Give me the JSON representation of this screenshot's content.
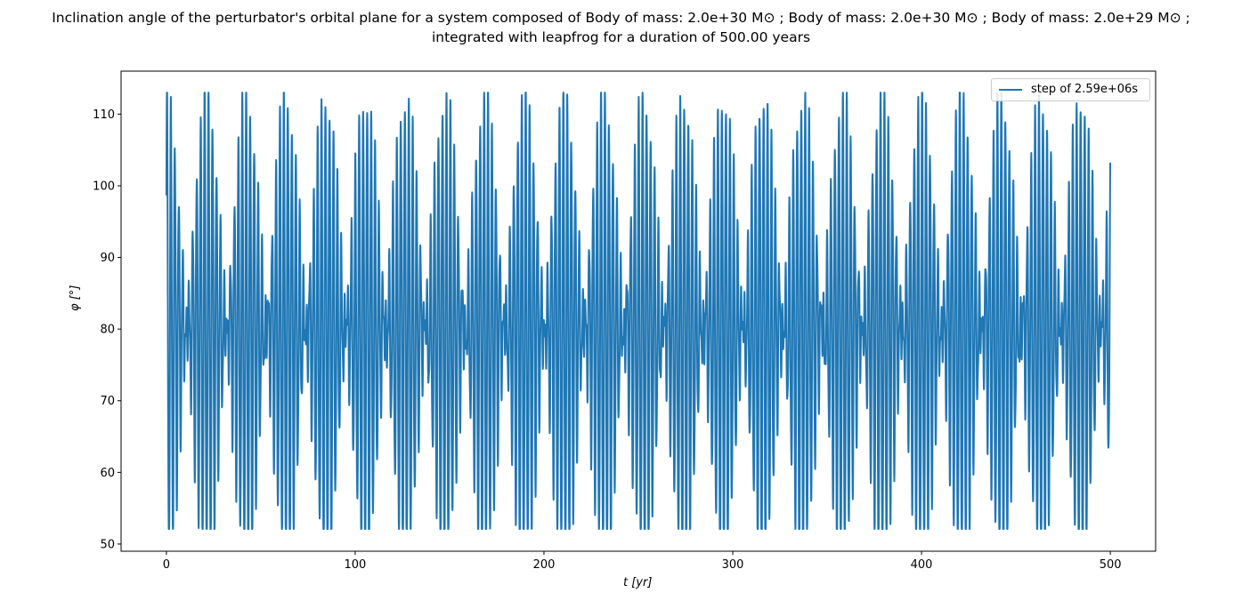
{
  "chart_data": {
    "type": "line",
    "title_line1": "Inclination angle of the perturbator's orbital plane for a system composed of Body of mass: 2.0e+30 M⊙ ; Body of mass: 2.0e+30 M⊙ ; Body of mass: 2.0e+29 M⊙ ;",
    "title_line2": "integrated with leapfrog for a duration of 500.00 years",
    "xlabel": "t [yr]",
    "ylabel": "φ [°]",
    "xlim": [
      -24,
      524
    ],
    "ylim": [
      49,
      116
    ],
    "xticks": [
      0,
      100,
      200,
      300,
      400,
      500
    ],
    "yticks": [
      50,
      60,
      70,
      80,
      90,
      100,
      110
    ],
    "legend": {
      "position": "top-right",
      "entries": [
        "step of 2.59e+06s"
      ]
    },
    "series": [
      {
        "name": "step of 2.59e+06s",
        "color": "#1f77b4",
        "t_start": 0,
        "t_end": 500,
        "description_model": {
          "mean": 80,
          "components": [
            {
              "amplitude": 17,
              "period_yr": 2.0,
              "phase_yr": 0.3
            },
            {
              "amplitude": 15.5,
              "period_yr": 2.21,
              "phase_yr": 0.3
            },
            {
              "amplitude": 2.5,
              "period_yr": 0.95,
              "phase_yr": 0.1
            }
          ],
          "sample_step_yr": 0.082
        },
        "observed_range": [
          52.1,
          113.0
        ]
      }
    ]
  }
}
